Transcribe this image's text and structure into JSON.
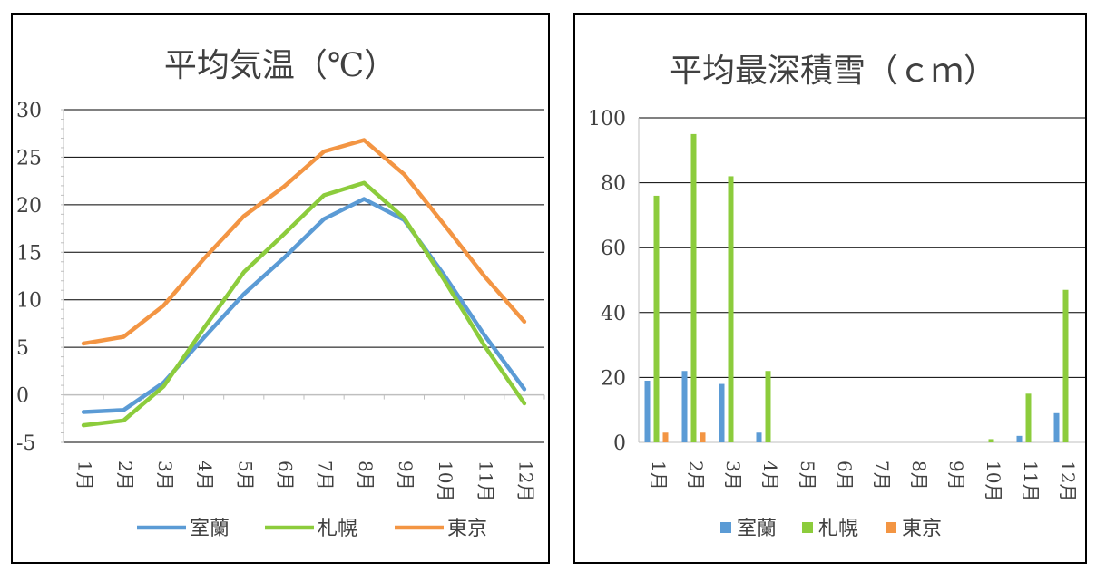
{
  "chart_data": [
    {
      "type": "line",
      "title": "平均気温（℃）",
      "categories": [
        "1月",
        "2月",
        "3月",
        "4月",
        "5月",
        "6月",
        "7月",
        "8月",
        "9月",
        "10月",
        "11月",
        "12月"
      ],
      "ylim": [
        -5,
        30
      ],
      "yticks": [
        30,
        25,
        20,
        15,
        10,
        5,
        0,
        -5
      ],
      "legend_position": "bottom",
      "series": [
        {
          "name": "室蘭",
          "color": "#5b9bd5",
          "values": [
            -1.8,
            -1.6,
            1.3,
            6.0,
            10.6,
            14.4,
            18.5,
            20.6,
            18.4,
            12.6,
            6.3,
            0.6
          ]
        },
        {
          "name": "札幌",
          "color": "#8ccc3c",
          "values": [
            -3.2,
            -2.7,
            0.9,
            7.0,
            12.9,
            16.9,
            21.0,
            22.3,
            18.6,
            12.1,
            5.2,
            -0.9
          ]
        },
        {
          "name": "東京",
          "color": "#f39543",
          "values": [
            5.4,
            6.1,
            9.4,
            14.3,
            18.8,
            21.9,
            25.6,
            26.8,
            23.2,
            17.9,
            12.5,
            7.7
          ]
        }
      ]
    },
    {
      "type": "bar",
      "title": "平均最深積雪（ｃｍ）",
      "categories": [
        "1月",
        "2月",
        "3月",
        "4月",
        "5月",
        "6月",
        "7月",
        "8月",
        "9月",
        "10月",
        "11月",
        "12月"
      ],
      "ylim": [
        0,
        100
      ],
      "yticks": [
        100,
        80,
        60,
        40,
        20,
        0
      ],
      "legend_position": "bottom",
      "series": [
        {
          "name": "室蘭",
          "color": "#5b9bd5",
          "values": [
            19,
            22,
            18,
            3,
            0,
            0,
            0,
            0,
            0,
            0,
            2,
            9
          ]
        },
        {
          "name": "札幌",
          "color": "#8ccc3c",
          "values": [
            76,
            95,
            82,
            22,
            0,
            0,
            0,
            0,
            0,
            1,
            15,
            47
          ]
        },
        {
          "name": "東京",
          "color": "#f39543",
          "values": [
            3,
            3,
            0,
            0,
            0,
            0,
            0,
            0,
            0,
            0,
            0,
            0
          ]
        }
      ]
    }
  ]
}
